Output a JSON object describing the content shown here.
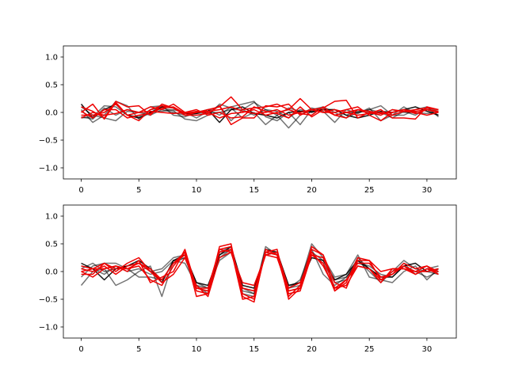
{
  "chart_data": [
    {
      "type": "line",
      "xlim": [
        -1.55,
        32.55
      ],
      "ylim": [
        -1.2,
        1.2
      ],
      "xticks": [
        "0",
        "5",
        "10",
        "15",
        "20",
        "25",
        "30"
      ],
      "yticks": [
        "−1.0",
        "−0.5",
        "0.0",
        "0.5",
        "1.0"
      ],
      "grid": false,
      "x": [
        0,
        1,
        2,
        3,
        4,
        5,
        6,
        7,
        8,
        9,
        10,
        11,
        12,
        13,
        14,
        15,
        16,
        17,
        18,
        19,
        20,
        21,
        22,
        23,
        24,
        25,
        26,
        27,
        28,
        29,
        30,
        31
      ],
      "series": [
        {
          "color": "#000000",
          "opacity": 0.55,
          "values": [
            -0.1,
            -0.08,
            0.12,
            0.1,
            -0.05,
            -0.08,
            0.05,
            0.08,
            0.03,
            -0.12,
            -0.15,
            -0.05,
            0.15,
            0.08,
            -0.1,
            0.0,
            -0.22,
            -0.05,
            -0.28,
            -0.05,
            0.08,
            0.02,
            -0.18,
            0.05,
            -0.02,
            0.08,
            -0.15,
            -0.05,
            0.1,
            -0.02,
            0.05,
            -0.05
          ]
        },
        {
          "color": "#000000",
          "opacity": 0.55,
          "values": [
            0.1,
            -0.05,
            -0.1,
            -0.15,
            0.02,
            0.0,
            0.1,
            0.12,
            -0.05,
            -0.08,
            0.0,
            0.05,
            -0.05,
            0.1,
            0.15,
            0.2,
            -0.08,
            -0.15,
            0.0,
            -0.22,
            0.05,
            0.1,
            0.0,
            -0.1,
            0.0,
            0.05,
            0.12,
            -0.05,
            -0.05,
            0.05,
            0.1,
            -0.08
          ]
        },
        {
          "color": "#000000",
          "opacity": 0.55,
          "values": [
            0.05,
            -0.18,
            -0.05,
            0.2,
            0.12,
            -0.12,
            0.0,
            0.02,
            0.05,
            0.0,
            -0.1,
            0.02,
            0.12,
            -0.15,
            0.05,
            0.18,
            0.05,
            -0.05,
            0.08,
            0.02,
            0.0,
            0.08,
            -0.05,
            0.0,
            0.0,
            0.05,
            0.0,
            -0.1,
            0.02,
            -0.05,
            0.08,
            0.02
          ]
        },
        {
          "color": "#000000",
          "opacity": 0.55,
          "values": [
            -0.08,
            -0.12,
            0.08,
            -0.05,
            0.05,
            0.0,
            -0.05,
            0.05,
            0.0,
            -0.05,
            -0.02,
            0.0,
            0.0,
            0.05,
            0.05,
            -0.05,
            0.05,
            0.02,
            -0.1,
            0.05,
            0.0,
            0.05,
            0.05,
            -0.05,
            0.02,
            0.0,
            -0.05,
            0.05,
            0.0,
            0.0,
            -0.02,
            0.0
          ]
        },
        {
          "color": "#000000",
          "opacity": 0.9,
          "values": [
            0.15,
            -0.1,
            0.05,
            0.15,
            -0.05,
            -0.1,
            0.0,
            0.1,
            0.08,
            -0.02,
            -0.02,
            0.05,
            -0.18,
            0.05,
            0.1,
            -0.02,
            -0.05,
            -0.1,
            0.0,
            0.02,
            0.02,
            0.05,
            0.05,
            -0.05,
            -0.1,
            -0.05,
            0.02,
            0.0,
            0.05,
            0.1,
            0.02,
            -0.05
          ]
        },
        {
          "color": "#ee0000",
          "opacity": 1,
          "values": [
            0.0,
            0.15,
            -0.12,
            0.18,
            -0.05,
            -0.15,
            0.05,
            0.12,
            0.08,
            -0.05,
            0.0,
            0.05,
            0.1,
            0.28,
            0.05,
            0.08,
            0.1,
            0.15,
            0.05,
            0.25,
            0.05,
            0.08,
            0.2,
            0.22,
            -0.1,
            0.0,
            -0.05,
            0.05,
            0.02,
            0.05,
            0.08,
            0.05
          ]
        },
        {
          "color": "#ee0000",
          "opacity": 1,
          "values": [
            0.1,
            0.02,
            -0.1,
            0.2,
            0.1,
            0.12,
            -0.05,
            0.15,
            0.08,
            -0.05,
            -0.05,
            -0.02,
            0.12,
            -0.22,
            -0.1,
            -0.1,
            0.12,
            0.1,
            0.15,
            -0.05,
            0.05,
            0.0,
            0.0,
            0.05,
            0.1,
            -0.05,
            -0.15,
            0.0,
            0.05,
            -0.02,
            0.05,
            0.02
          ]
        },
        {
          "color": "#ee0000",
          "opacity": 1,
          "values": [
            -0.05,
            -0.05,
            0.0,
            0.15,
            -0.05,
            0.0,
            0.1,
            0.05,
            0.15,
            0.0,
            0.05,
            -0.05,
            0.0,
            -0.1,
            -0.08,
            0.1,
            0.02,
            -0.02,
            -0.1,
            0.1,
            -0.08,
            0.05,
            -0.05,
            0.0,
            -0.05,
            -0.02,
            0.05,
            -0.1,
            -0.1,
            -0.12,
            0.1,
            0.05
          ]
        },
        {
          "color": "#ee0000",
          "opacity": 1,
          "values": [
            0.02,
            -0.1,
            0.05,
            0.05,
            -0.1,
            -0.05,
            -0.02,
            0.08,
            0.1,
            -0.02,
            0.02,
            0.0,
            -0.1,
            -0.02,
            0.0,
            0.05,
            -0.05,
            0.0,
            0.05,
            -0.02,
            -0.05,
            0.1,
            -0.05,
            -0.1,
            0.05,
            -0.02,
            0.0,
            -0.05,
            0.02,
            0.0,
            -0.05,
            0.0
          ]
        },
        {
          "color": "#ee0000",
          "opacity": 1,
          "values": [
            -0.1,
            0.0,
            -0.05,
            -0.02,
            0.05,
            0.0,
            0.02,
            0.0,
            -0.02,
            0.0,
            0.0,
            0.02,
            0.05,
            0.1,
            0.02,
            -0.02,
            0.0,
            0.05,
            -0.05,
            0.0,
            0.05,
            0.0,
            0.05,
            0.0,
            0.05,
            0.02,
            -0.02,
            0.0,
            0.05,
            0.02,
            0.05,
            0.0
          ]
        }
      ]
    },
    {
      "type": "line",
      "xlim": [
        -1.55,
        32.55
      ],
      "ylim": [
        -1.2,
        1.2
      ],
      "xticks": [
        "0",
        "5",
        "10",
        "15",
        "20",
        "25",
        "30"
      ],
      "yticks": [
        "−1.0",
        "−0.5",
        "0.0",
        "0.5",
        "1.0"
      ],
      "grid": false,
      "x": [
        0,
        1,
        2,
        3,
        4,
        5,
        6,
        7,
        8,
        9,
        10,
        11,
        12,
        13,
        14,
        15,
        16,
        17,
        18,
        19,
        20,
        21,
        22,
        23,
        24,
        25,
        26,
        27,
        28,
        29,
        30,
        31
      ],
      "series": [
        {
          "color": "#000000",
          "opacity": 0.55,
          "values": [
            -0.25,
            0.0,
            0.05,
            -0.25,
            -0.15,
            0.0,
            0.1,
            -0.45,
            0.2,
            0.15,
            -0.25,
            -0.3,
            0.25,
            0.4,
            -0.35,
            -0.4,
            0.45,
            0.3,
            -0.25,
            -0.2,
            0.5,
            0.25,
            -0.1,
            -0.05,
            0.3,
            -0.1,
            -0.15,
            -0.2,
            0.0,
            0.1,
            -0.15,
            0.05
          ]
        },
        {
          "color": "#000000",
          "opacity": 0.55,
          "values": [
            -0.1,
            0.1,
            0.15,
            0.15,
            0.05,
            -0.1,
            -0.1,
            -0.15,
            0.15,
            0.25,
            -0.3,
            -0.35,
            0.35,
            0.45,
            -0.4,
            -0.45,
            0.4,
            0.35,
            -0.35,
            -0.3,
            0.35,
            0.2,
            -0.15,
            -0.1,
            0.2,
            0.0,
            -0.2,
            0.0,
            0.2,
            0.05,
            0.0,
            -0.05
          ]
        },
        {
          "color": "#000000",
          "opacity": 0.55,
          "values": [
            0.1,
            0.05,
            -0.05,
            0.1,
            0.0,
            0.05,
            -0.05,
            0.0,
            0.2,
            0.25,
            -0.2,
            -0.3,
            0.2,
            0.35,
            -0.3,
            -0.35,
            0.35,
            0.3,
            -0.3,
            -0.25,
            0.3,
            0.15,
            -0.2,
            -0.15,
            0.25,
            0.05,
            -0.1,
            -0.05,
            0.15,
            -0.05,
            0.05,
            0.1
          ]
        },
        {
          "color": "#000000",
          "opacity": 0.55,
          "values": [
            0.05,
            0.15,
            0.0,
            0.05,
            0.1,
            0.15,
            0.0,
            0.05,
            0.25,
            0.3,
            -0.25,
            -0.4,
            0.3,
            0.4,
            -0.3,
            -0.4,
            0.4,
            0.35,
            -0.3,
            -0.15,
            0.4,
            -0.05,
            -0.25,
            -0.1,
            0.15,
            0.1,
            -0.05,
            -0.1,
            0.1,
            0.0,
            -0.1,
            0.0
          ]
        },
        {
          "color": "#000000",
          "opacity": 0.9,
          "values": [
            0.15,
            0.05,
            -0.15,
            0.05,
            0.1,
            0.2,
            0.05,
            -0.2,
            0.2,
            0.3,
            -0.2,
            -0.25,
            0.3,
            0.45,
            -0.25,
            -0.3,
            0.3,
            0.35,
            -0.25,
            -0.2,
            0.25,
            0.2,
            -0.15,
            -0.05,
            0.2,
            0.05,
            -0.1,
            -0.1,
            0.1,
            0.15,
            0.0,
            0.05
          ]
        },
        {
          "color": "#ee0000",
          "opacity": 1,
          "values": [
            0.05,
            0.0,
            0.1,
            -0.05,
            0.1,
            0.15,
            0.05,
            -0.15,
            0.15,
            0.3,
            -0.35,
            -0.4,
            0.45,
            0.5,
            -0.45,
            -0.55,
            0.4,
            0.3,
            -0.45,
            -0.25,
            0.4,
            0.3,
            -0.35,
            -0.2,
            0.25,
            0.2,
            -0.15,
            -0.05,
            0.15,
            0.05,
            0.1,
            0.0
          ]
        },
        {
          "color": "#ee0000",
          "opacity": 1,
          "values": [
            0.0,
            -0.1,
            0.05,
            0.1,
            0.0,
            0.2,
            -0.2,
            -0.1,
            0.0,
            0.4,
            -0.3,
            -0.35,
            0.35,
            0.4,
            -0.5,
            -0.45,
            0.35,
            0.4,
            -0.5,
            -0.3,
            0.35,
            0.1,
            -0.3,
            -0.25,
            0.1,
            0.05,
            -0.2,
            0.05,
            0.05,
            -0.05,
            0.05,
            -0.05
          ]
        },
        {
          "color": "#ee0000",
          "opacity": 1,
          "values": [
            -0.05,
            -0.05,
            0.15,
            0.0,
            0.15,
            0.25,
            0.0,
            -0.2,
            -0.05,
            0.25,
            -0.25,
            -0.45,
            0.25,
            0.35,
            -0.3,
            -0.35,
            0.3,
            0.25,
            -0.35,
            -0.3,
            0.45,
            0.3,
            -0.2,
            -0.3,
            0.2,
            0.2,
            0.0,
            0.05,
            0.05,
            0.0,
            0.1,
            -0.05
          ]
        },
        {
          "color": "#ee0000",
          "opacity": 1,
          "values": [
            0.0,
            0.05,
            0.05,
            0.1,
            0.05,
            0.1,
            -0.15,
            -0.25,
            0.1,
            0.35,
            -0.3,
            -0.3,
            0.4,
            0.35,
            -0.2,
            -0.25,
            0.3,
            0.35,
            -0.3,
            -0.2,
            0.3,
            0.25,
            -0.3,
            -0.15,
            0.15,
            0.15,
            -0.1,
            -0.05,
            0.1,
            0.0,
            0.0,
            0.05
          ]
        },
        {
          "color": "#ee0000",
          "opacity": 1,
          "values": [
            0.1,
            0.05,
            0.15,
            0.05,
            0.05,
            0.15,
            0.0,
            -0.15,
            0.15,
            0.35,
            -0.45,
            -0.4,
            0.4,
            0.45,
            -0.4,
            -0.5,
            0.35,
            0.3,
            -0.4,
            -0.35,
            0.3,
            0.15,
            -0.35,
            -0.15,
            0.1,
            0.05,
            -0.15,
            0.0,
            0.1,
            -0.05,
            0.05,
            0.0
          ]
        }
      ]
    }
  ]
}
